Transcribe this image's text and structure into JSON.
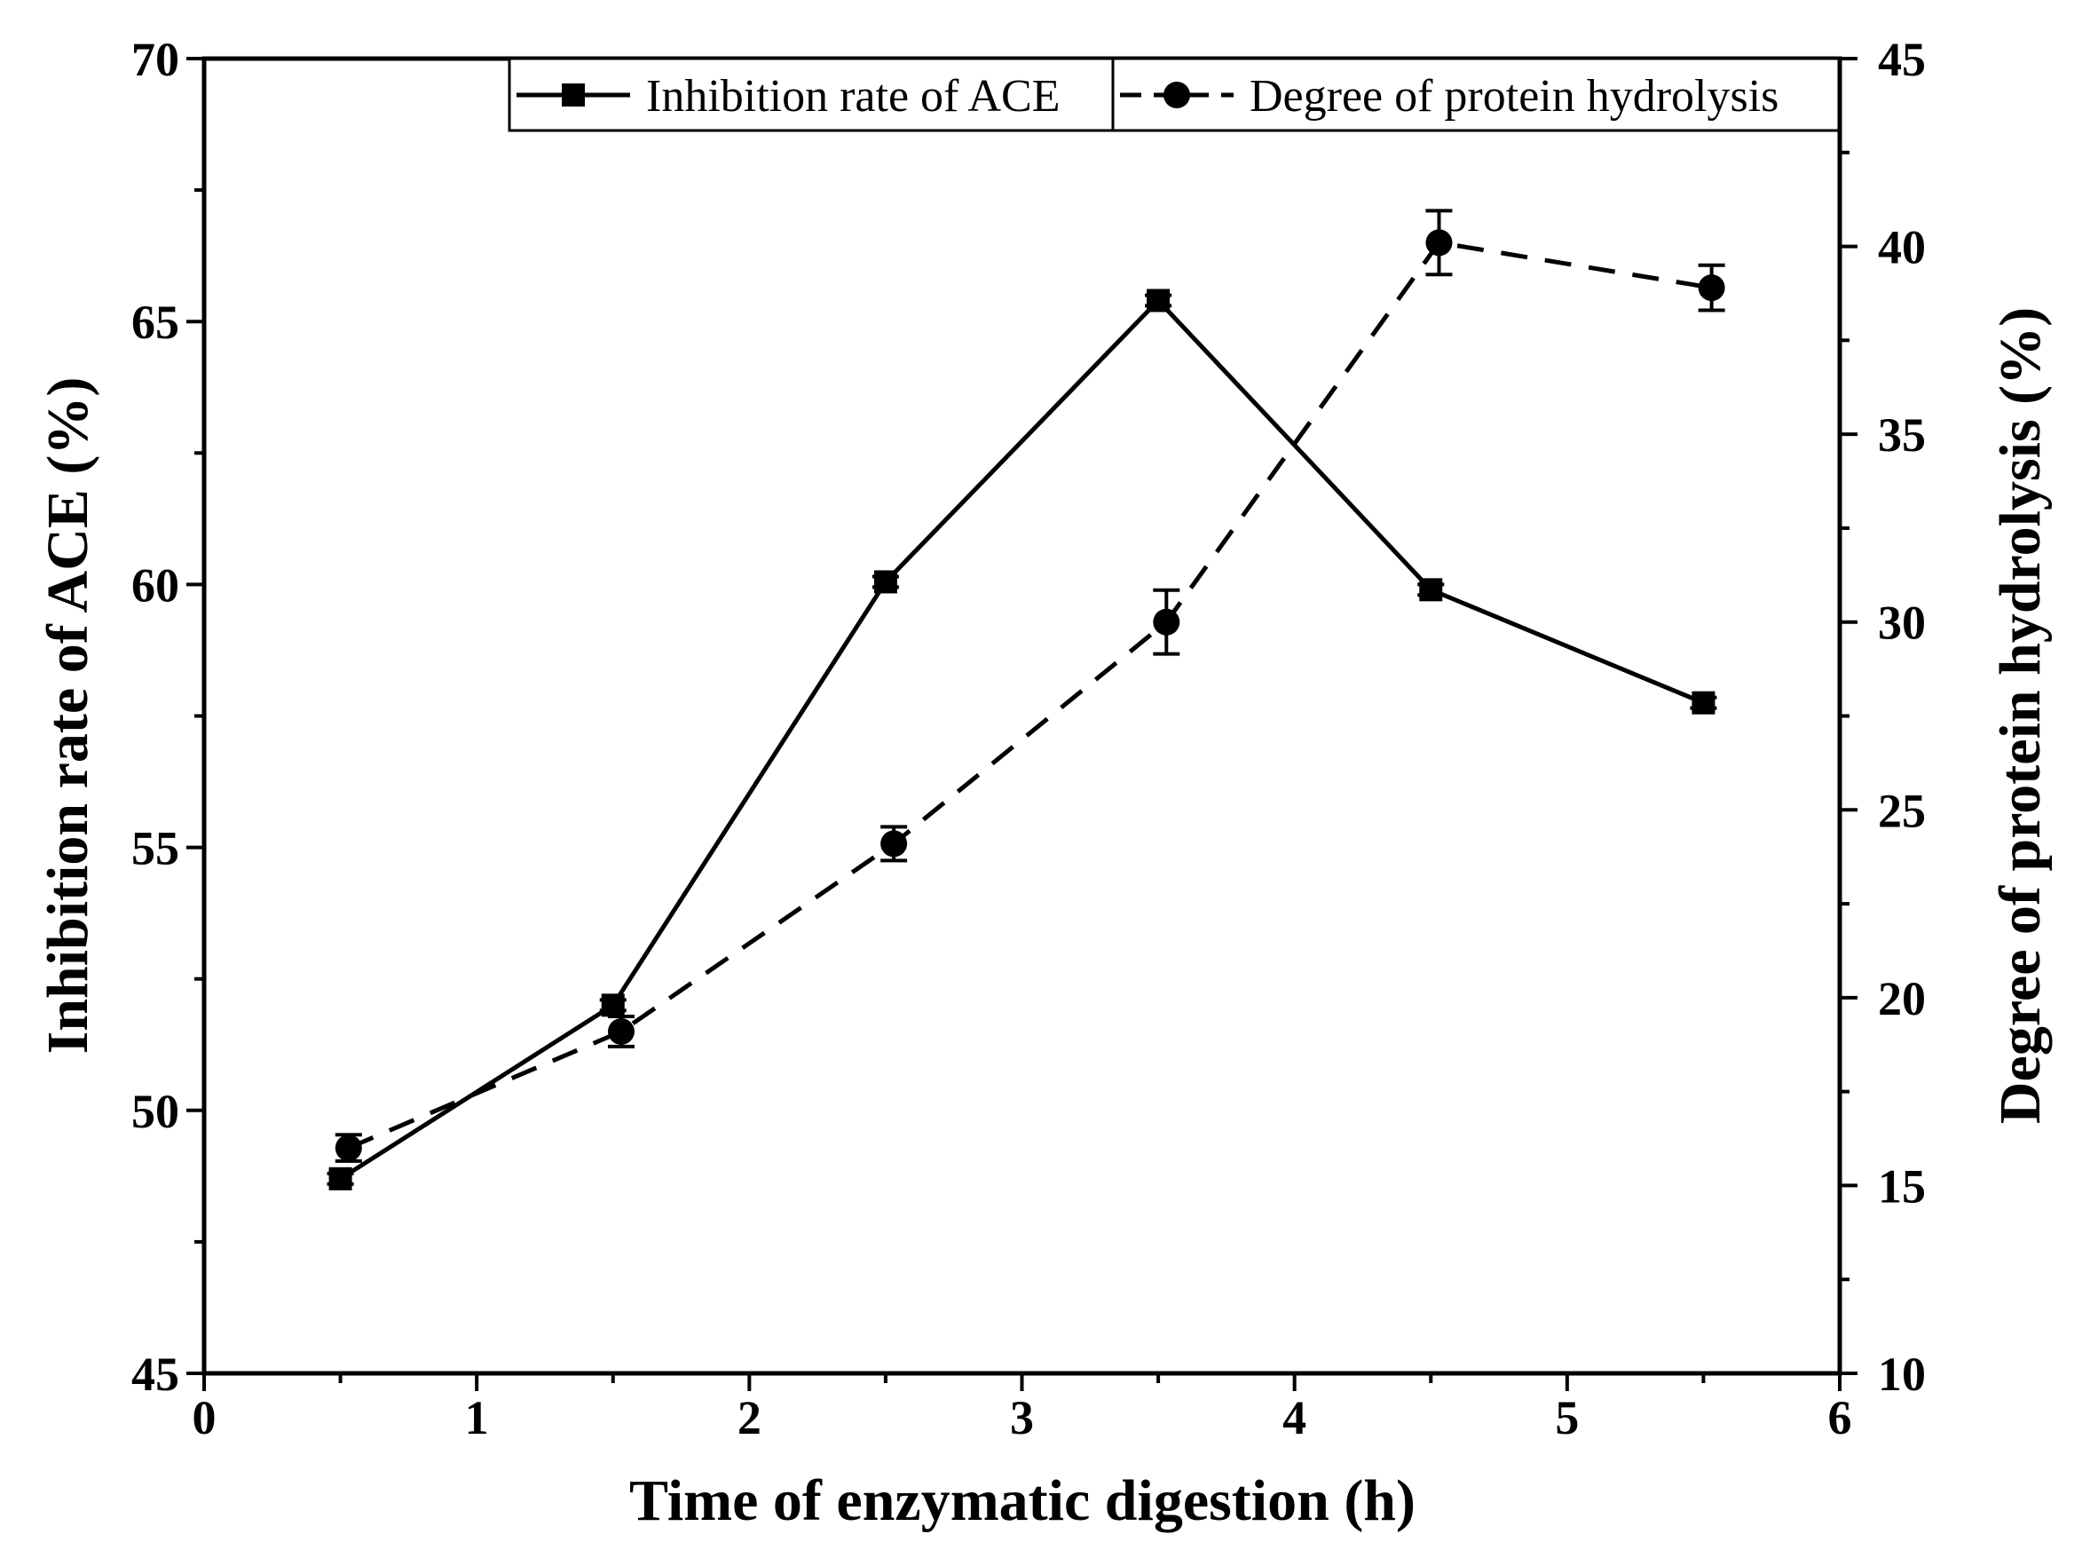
{
  "chart_data": {
    "type": "line",
    "xlabel": "Time of enzymatic digestion (h)",
    "ylabel_left": "Inhibition rate of ACE (%)",
    "ylabel_right": "Degree of protein hydrolysis (%)",
    "xlim": [
      0,
      6
    ],
    "ylim_left": [
      45,
      70
    ],
    "ylim_right": [
      10,
      45
    ],
    "x_ticks": [
      "0",
      "1",
      "2",
      "3",
      "4",
      "5",
      "6"
    ],
    "y_left_ticks": [
      "45",
      "50",
      "55",
      "60",
      "65",
      "70"
    ],
    "y_right_ticks": [
      "10",
      "15",
      "20",
      "25",
      "30",
      "35",
      "40",
      "45"
    ],
    "legend_position": "top-right",
    "grid": false,
    "series": [
      {
        "name": "Inhibition rate of ACE",
        "axis": "left",
        "marker": "square",
        "line_style": "solid",
        "x": [
          0.5,
          1.5,
          2.5,
          3.5,
          4.5,
          5.5
        ],
        "y": [
          48.7,
          52.0,
          60.05,
          65.4,
          59.9,
          57.75
        ],
        "error": [
          0.1,
          0.1,
          0.1,
          0.1,
          0.1,
          0.1
        ]
      },
      {
        "name": "Degree of protein hydrolysis",
        "axis": "right",
        "marker": "circle",
        "line_style": "dashed",
        "x": [
          0.53,
          1.53,
          2.53,
          3.53,
          4.53,
          5.53
        ],
        "y": [
          16.0,
          19.1,
          24.1,
          30.0,
          40.1,
          38.9
        ],
        "error": [
          0.35,
          0.4,
          0.45,
          0.85,
          0.85,
          0.6
        ]
      }
    ]
  }
}
